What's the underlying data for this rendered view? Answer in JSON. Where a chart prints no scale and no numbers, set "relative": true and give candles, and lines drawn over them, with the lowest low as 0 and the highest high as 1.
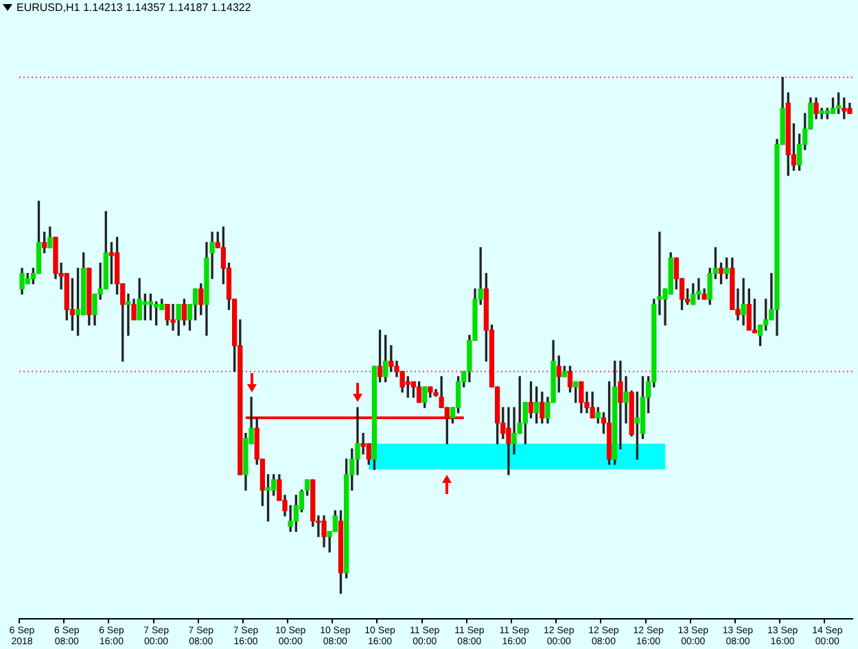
{
  "chart_data": {
    "type": "candlestick",
    "title": "EURUSD,H1  1.14213 1.14357 1.14187 1.14322",
    "relative": true,
    "categories": [
      "6 Sep 2018",
      null,
      null,
      null,
      null,
      null,
      null,
      null,
      "6 Sep 08:00",
      null,
      null,
      null,
      null,
      null,
      null,
      null,
      "6 Sep 16:00",
      null,
      null,
      null,
      null,
      null,
      null,
      null,
      "7 Sep 00:00",
      null,
      null,
      null,
      null,
      null,
      null,
      null,
      "7 Sep 08:00",
      null,
      null,
      null,
      null,
      null,
      null,
      null,
      "7 Sep 16:00",
      null,
      null,
      null,
      null,
      null,
      null,
      null,
      "10 Sep 00:00",
      null,
      null,
      null,
      null,
      null,
      null,
      null,
      "10 Sep 08:00",
      null,
      null,
      null,
      null,
      null,
      null,
      null,
      "10 Sep 16:00",
      null,
      null,
      null,
      null,
      null,
      null,
      null,
      "11 Sep 00:00",
      null,
      null,
      null,
      null,
      null,
      null,
      null,
      "11 Sep 08:00",
      null,
      null,
      null,
      null,
      null,
      null,
      null,
      "11 Sep 16:00",
      null,
      null,
      null,
      null,
      null,
      null,
      null,
      "12 Sep 00:00",
      null,
      null,
      null,
      null,
      null,
      null,
      null,
      "12 Sep 08:00",
      null,
      null,
      null,
      null,
      null,
      null,
      null,
      "12 Sep 16:00",
      null,
      null,
      null,
      null,
      null,
      null,
      null,
      "13 Sep 00:00",
      null,
      null,
      null,
      null,
      null,
      null,
      null,
      "13 Sep 08:00",
      null,
      null,
      null,
      null,
      null,
      null,
      null,
      "13 Sep 16:00",
      null,
      null,
      null,
      null,
      null,
      null,
      null,
      "14 Sep 00:00",
      null,
      null,
      null,
      null
    ],
    "ohlc": [
      [
        0.59,
        0.63,
        0.58,
        0.62
      ],
      [
        0.6,
        0.62,
        0.6,
        0.61
      ],
      [
        0.61,
        0.63,
        0.6,
        0.62
      ],
      [
        0.62,
        0.76,
        0.62,
        0.68
      ],
      [
        0.68,
        0.7,
        0.66,
        0.67
      ],
      [
        0.67,
        0.71,
        0.67,
        0.69
      ],
      [
        0.69,
        0.69,
        0.61,
        0.62
      ],
      [
        0.62,
        0.64,
        0.59,
        0.615
      ],
      [
        0.62,
        0.62,
        0.53,
        0.55
      ],
      [
        0.55,
        0.61,
        0.51,
        0.54
      ],
      [
        0.54,
        0.63,
        0.5,
        0.55
      ],
      [
        0.54,
        0.66,
        0.54,
        0.63
      ],
      [
        0.63,
        0.63,
        0.52,
        0.54
      ],
      [
        0.54,
        0.58,
        0.52,
        0.58
      ],
      [
        0.58,
        0.64,
        0.57,
        0.59
      ],
      [
        0.59,
        0.74,
        0.59,
        0.66
      ],
      [
        0.66,
        0.68,
        0.6,
        0.655
      ],
      [
        0.66,
        0.69,
        0.58,
        0.6
      ],
      [
        0.6,
        0.6,
        0.45,
        0.56
      ],
      [
        0.56,
        0.58,
        0.5,
        0.565
      ],
      [
        0.56,
        0.57,
        0.53,
        0.53
      ],
      [
        0.53,
        0.61,
        0.53,
        0.57
      ],
      [
        0.56,
        0.58,
        0.53,
        0.565
      ],
      [
        0.56,
        0.58,
        0.53,
        0.565
      ],
      [
        0.555,
        0.565,
        0.52,
        0.56
      ],
      [
        0.55,
        0.57,
        0.55,
        0.56
      ],
      [
        0.56,
        0.56,
        0.52,
        0.53
      ],
      [
        0.53,
        0.56,
        0.51,
        0.525
      ],
      [
        0.53,
        0.56,
        0.5,
        0.56
      ],
      [
        0.56,
        0.57,
        0.52,
        0.53
      ],
      [
        0.53,
        0.56,
        0.51,
        0.56
      ],
      [
        0.56,
        0.59,
        0.53,
        0.59
      ],
      [
        0.59,
        0.6,
        0.54,
        0.56
      ],
      [
        0.56,
        0.68,
        0.5,
        0.65
      ],
      [
        0.66,
        0.7,
        0.61,
        0.68
      ],
      [
        0.68,
        0.7,
        0.67,
        0.67
      ],
      [
        0.67,
        0.71,
        0.6,
        0.63
      ],
      [
        0.63,
        0.64,
        0.55,
        0.57
      ],
      [
        0.57,
        0.57,
        0.43,
        0.48
      ],
      [
        0.48,
        0.53,
        0.23,
        0.23
      ],
      [
        0.23,
        0.31,
        0.2,
        0.3
      ],
      [
        0.29,
        0.38,
        0.29,
        0.32
      ],
      [
        0.32,
        0.34,
        0.25,
        0.26
      ],
      [
        0.26,
        0.26,
        0.17,
        0.2
      ],
      [
        0.2,
        0.23,
        0.14,
        0.205
      ],
      [
        0.2,
        0.23,
        0.19,
        0.22
      ],
      [
        0.22,
        0.23,
        0.18,
        0.18
      ],
      [
        0.18,
        0.19,
        0.15,
        0.16
      ],
      [
        0.13,
        0.17,
        0.12,
        0.14
      ],
      [
        0.14,
        0.19,
        0.12,
        0.17
      ],
      [
        0.163,
        0.2,
        0.158,
        0.197
      ],
      [
        0.2,
        0.22,
        0.19,
        0.22
      ],
      [
        0.22,
        0.22,
        0.13,
        0.14
      ],
      [
        0.14,
        0.15,
        0.11,
        0.14
      ],
      [
        0.14,
        0.15,
        0.09,
        0.11
      ],
      [
        0.11,
        0.12,
        0.08,
        0.12
      ],
      [
        0.12,
        0.16,
        0.12,
        0.15
      ],
      [
        0.14,
        0.16,
        0,
        0.04
      ],
      [
        0.04,
        0.26,
        0.03,
        0.23
      ],
      [
        0.23,
        0.28,
        0.2,
        0.26
      ],
      [
        0.26,
        0.36,
        0.23,
        0.29
      ],
      [
        0.29,
        0.31,
        0.27,
        0.285
      ],
      [
        0.29,
        0.29,
        0.25,
        0.26
      ],
      [
        0.26,
        0.44,
        0.24,
        0.44
      ],
      [
        0.44,
        0.51,
        0.41,
        0.42
      ],
      [
        0.42,
        0.5,
        0.41,
        0.45
      ],
      [
        0.45,
        0.48,
        0.43,
        0.44
      ],
      [
        0.44,
        0.45,
        0.42,
        0.43
      ],
      [
        0.43,
        0.43,
        0.39,
        0.4
      ],
      [
        0.41,
        0.42,
        0.38,
        0.405
      ],
      [
        0.41,
        0.41,
        0.38,
        0.4
      ],
      [
        0.4,
        0.41,
        0.37,
        0.37
      ],
      [
        0.37,
        0.4,
        0.36,
        0.4
      ],
      [
        0.4,
        0.4,
        0.38,
        0.39
      ],
      [
        0.389,
        0.395,
        0.382,
        0.384
      ],
      [
        0.38,
        0.42,
        0.36,
        0.36
      ],
      [
        0.36,
        0.36,
        0.29,
        0.34
      ],
      [
        0.34,
        0.36,
        0.33,
        0.36
      ],
      [
        0.36,
        0.42,
        0.35,
        0.41
      ],
      [
        0.41,
        0.43,
        0.4,
        0.43
      ],
      [
        0.43,
        0.5,
        0.41,
        0.49
      ],
      [
        0.49,
        0.59,
        0.49,
        0.57
      ],
      [
        0.57,
        0.67,
        0.56,
        0.59
      ],
      [
        0.59,
        0.62,
        0.45,
        0.51
      ],
      [
        0.51,
        0.52,
        0.4,
        0.4
      ],
      [
        0.4,
        0.4,
        0.29,
        0.33
      ],
      [
        0.33,
        0.36,
        0.3,
        0.31
      ],
      [
        0.32,
        0.36,
        0.23,
        0.29
      ],
      [
        0.29,
        0.36,
        0.27,
        0.31
      ],
      [
        0.31,
        0.42,
        0.31,
        0.33
      ],
      [
        0.33,
        0.37,
        0.29,
        0.37
      ],
      [
        0.37,
        0.41,
        0.34,
        0.35
      ],
      [
        0.35,
        0.4,
        0.33,
        0.37
      ],
      [
        0.37,
        0.39,
        0.33,
        0.34
      ],
      [
        0.34,
        0.38,
        0.33,
        0.37
      ],
      [
        0.37,
        0.49,
        0.37,
        0.45
      ],
      [
        0.44,
        0.46,
        0.39,
        0.42
      ],
      [
        0.42,
        0.44,
        0.42,
        0.43
      ],
      [
        0.43,
        0.44,
        0.39,
        0.4
      ],
      [
        0.4,
        0.41,
        0.37,
        0.41
      ],
      [
        0.41,
        0.41,
        0.35,
        0.37
      ],
      [
        0.37,
        0.39,
        0.35,
        0.36
      ],
      [
        0.36,
        0.39,
        0.34,
        0.34
      ],
      [
        0.34,
        0.36,
        0.33,
        0.35
      ],
      [
        0.34,
        0.35,
        0.31,
        0.33
      ],
      [
        0.33,
        0.41,
        0.25,
        0.26
      ],
      [
        0.26,
        0.45,
        0.25,
        0.4
      ],
      [
        0.41,
        0.45,
        0.28,
        0.37
      ],
      [
        0.37,
        0.42,
        0.33,
        0.39
      ],
      [
        0.389,
        0.392,
        0.305,
        0.308
      ],
      [
        0.33,
        0.39,
        0.26,
        0.34
      ],
      [
        0.31,
        0.42,
        0.3,
        0.38
      ],
      [
        0.38,
        0.42,
        0.35,
        0.41
      ],
      [
        0.41,
        0.57,
        0.4,
        0.56
      ],
      [
        0.57,
        0.7,
        0.54,
        0.575
      ],
      [
        0.57,
        0.59,
        0.52,
        0.59
      ],
      [
        0.58,
        0.66,
        0.58,
        0.65
      ],
      [
        0.65,
        0.65,
        0.59,
        0.61
      ],
      [
        0.61,
        0.61,
        0.55,
        0.57
      ],
      [
        0.57,
        0.59,
        0.56,
        0.565
      ],
      [
        0.56,
        0.6,
        0.56,
        0.58
      ],
      [
        0.58,
        0.61,
        0.57,
        0.585
      ],
      [
        0.58,
        0.59,
        0.57,
        0.57
      ],
      [
        0.57,
        0.63,
        0.56,
        0.62
      ],
      [
        0.62,
        0.67,
        0.61,
        0.63
      ],
      [
        0.63,
        0.64,
        0.6,
        0.62
      ],
      [
        0.62,
        0.65,
        0.61,
        0.63
      ],
      [
        0.63,
        0.65,
        0.55,
        0.55
      ],
      [
        0.55,
        0.59,
        0.53,
        0.54
      ],
      [
        0.54,
        0.61,
        0.52,
        0.56
      ],
      [
        0.56,
        0.59,
        0.51,
        0.51
      ],
      [
        0.51,
        0.57,
        0.505,
        0.505
      ],
      [
        0.5,
        0.52,
        0.48,
        0.52
      ],
      [
        0.52,
        0.57,
        0.51,
        0.53
      ],
      [
        0.53,
        0.62,
        0.53,
        0.55
      ],
      [
        0.55,
        0.88,
        0.5,
        0.87
      ],
      [
        0.87,
        1,
        0.87,
        0.94
      ],
      [
        0.95,
        0.97,
        0.81,
        0.85
      ],
      [
        0.85,
        0.91,
        0.82,
        0.83
      ],
      [
        0.83,
        0.89,
        0.82,
        0.87
      ],
      [
        0.87,
        0.93,
        0.86,
        0.9
      ],
      [
        0.9,
        0.96,
        0.9,
        0.95
      ],
      [
        0.95,
        0.96,
        0.92,
        0.93
      ],
      [
        0.93,
        0.94,
        0.92,
        0.935
      ],
      [
        0.93,
        0.94,
        0.92,
        0.935
      ],
      [
        0.93,
        0.96,
        0.93,
        0.94
      ],
      [
        0.94,
        0.97,
        0.93,
        0.945
      ],
      [
        0.94,
        0.96,
        0.92,
        0.935
      ],
      [
        0.94,
        0.95,
        0.93,
        0.93
      ]
    ],
    "series": [
      {
        "type": "line",
        "color": "#ff0000",
        "values": [
          null,
          null,
          null,
          null,
          null,
          null,
          null,
          null,
          null,
          null,
          null,
          null,
          null,
          null,
          null,
          null,
          null,
          null,
          null,
          null,
          null,
          null,
          null,
          null,
          null,
          null,
          null,
          null,
          null,
          null,
          null,
          null,
          null,
          null,
          null,
          null,
          null,
          null,
          null,
          null,
          0.34,
          null,
          null,
          null,
          null,
          null,
          null,
          null,
          null,
          null,
          null,
          null,
          null,
          null,
          null,
          null,
          null,
          null,
          null,
          null,
          null,
          null,
          null,
          null,
          null,
          null,
          null,
          null,
          null,
          null,
          null,
          null,
          null,
          null,
          null,
          null,
          null,
          null,
          null,
          0.34,
          null,
          null,
          null,
          null,
          null,
          null,
          null,
          null,
          null,
          null,
          null,
          null,
          null,
          null,
          null,
          null,
          null,
          null,
          null,
          null,
          null,
          null,
          null,
          null,
          null,
          null,
          null,
          null,
          null,
          null,
          null,
          null,
          null,
          null,
          null,
          null,
          null,
          null,
          null,
          null,
          null,
          null,
          null,
          null,
          null,
          null,
          null,
          null,
          null,
          null,
          null,
          null,
          null,
          null,
          null,
          null,
          null,
          null,
          null,
          null,
          null,
          null,
          null,
          null,
          null,
          null,
          null,
          null,
          null
        ]
      }
    ],
    "bands": [
      {
        "axis": "y",
        "from": 0.24,
        "to": 0.29,
        "color": "#00ffff"
      }
    ],
    "ref_lines": [
      {
        "axis": "y",
        "value": 1,
        "color": "#ff3399",
        "line_style": "dotted"
      },
      {
        "axis": "y",
        "value": 0.43,
        "color": "#ff3399",
        "line_style": "dotted"
      }
    ]
  }
}
